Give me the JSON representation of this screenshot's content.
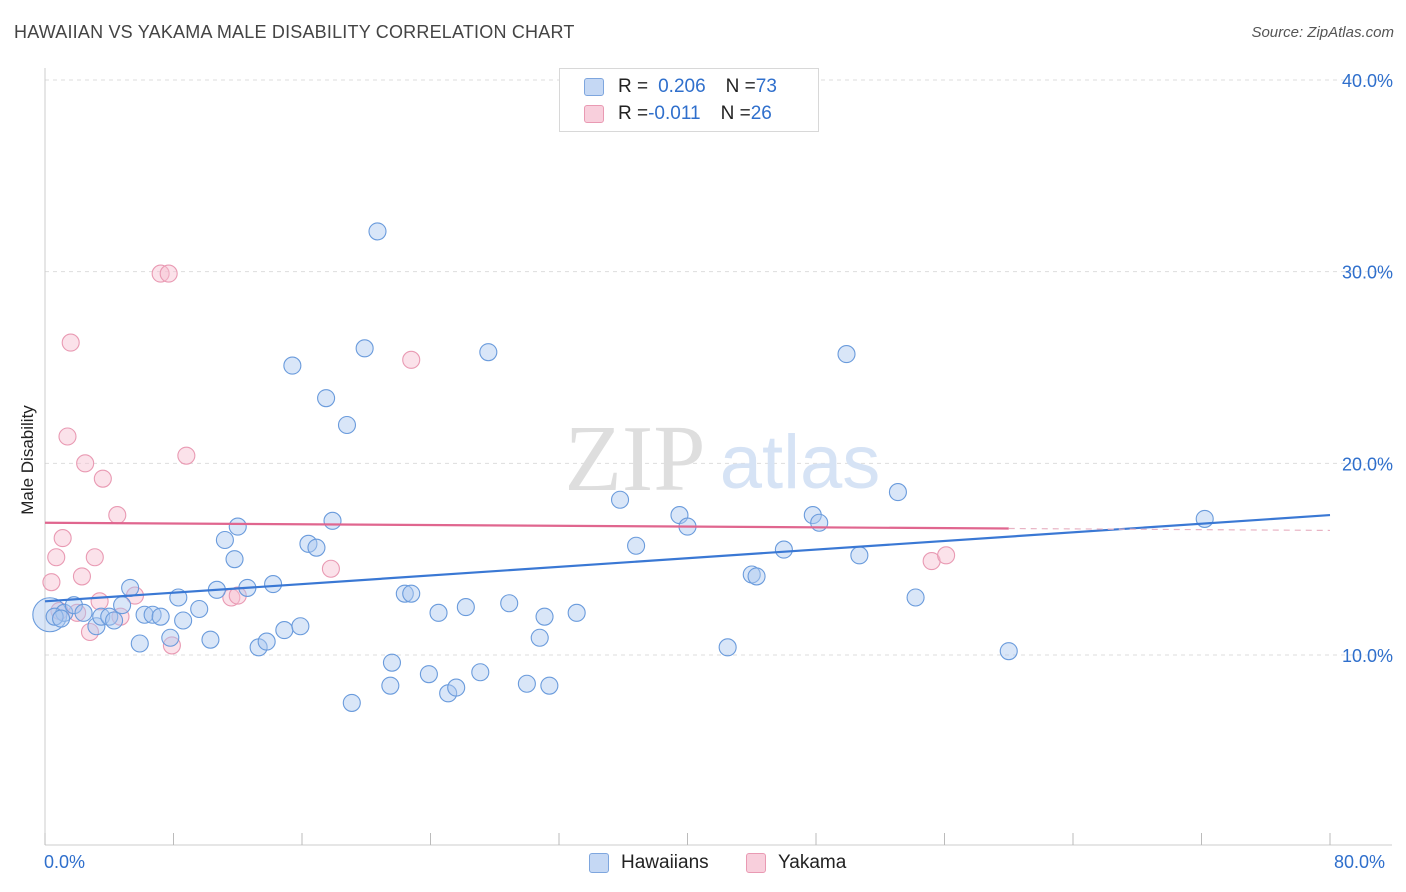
{
  "header": {
    "title": "HAWAIIAN VS YAKAMA MALE DISABILITY CORRELATION CHART",
    "source": "Source: ZipAtlas.com"
  },
  "watermark": {
    "zip": "ZIP",
    "atlas": "atlas"
  },
  "legend_top": {
    "rows": [
      {
        "r_label": "R = ",
        "r_value": "0.206",
        "n_label": "N = ",
        "n_value": "73",
        "color": "#7ea6de"
      },
      {
        "r_label": "R = ",
        "r_value": "-0.011",
        "n_label": "N = ",
        "n_value": "26",
        "color": "#e99ab3"
      }
    ]
  },
  "legend_bottom": {
    "items": [
      "Hawaiians",
      "Yakama"
    ]
  },
  "chart_data": {
    "type": "scatter",
    "title": "HAWAIIAN VS YAKAMA MALE DISABILITY CORRELATION CHART",
    "xlabel": "",
    "ylabel": "Male Disability",
    "xlim": [
      0,
      80
    ],
    "ylim": [
      0,
      40
    ],
    "x_tick_labels": [
      "0.0%",
      "80.0%"
    ],
    "y_tick_labels": [
      "10.0%",
      "20.0%",
      "30.0%",
      "40.0%"
    ],
    "y_ticks": [
      10,
      20,
      30,
      40
    ],
    "colors": {
      "Hawaiians": "#3a78d4",
      "Yakama": "#e0668f"
    },
    "series": [
      {
        "name": "Hawaiians",
        "trend": {
          "x0": 0,
          "y0": 12.8,
          "x1": 80,
          "y1": 17.3
        },
        "points": [
          [
            0.3,
            12.1
          ],
          [
            1.2,
            12.2
          ],
          [
            1.8,
            12.6
          ],
          [
            2.4,
            12.2
          ],
          [
            3.2,
            11.5
          ],
          [
            3.5,
            12.0
          ],
          [
            4.0,
            12.0
          ],
          [
            4.3,
            11.8
          ],
          [
            4.8,
            12.6
          ],
          [
            5.3,
            13.5
          ],
          [
            5.9,
            10.6
          ],
          [
            6.2,
            12.1
          ],
          [
            6.7,
            12.1
          ],
          [
            7.2,
            12.0
          ],
          [
            7.8,
            10.9
          ],
          [
            8.3,
            13.0
          ],
          [
            8.6,
            11.8
          ],
          [
            9.6,
            12.4
          ],
          [
            10.3,
            10.8
          ],
          [
            10.7,
            13.4
          ],
          [
            11.2,
            16.0
          ],
          [
            11.8,
            15.0
          ],
          [
            12.0,
            16.7
          ],
          [
            12.6,
            13.5
          ],
          [
            13.3,
            10.4
          ],
          [
            13.8,
            10.7
          ],
          [
            14.2,
            13.7
          ],
          [
            14.9,
            11.3
          ],
          [
            15.4,
            25.1
          ],
          [
            15.9,
            11.5
          ],
          [
            16.4,
            15.8
          ],
          [
            16.9,
            15.6
          ],
          [
            17.5,
            23.4
          ],
          [
            17.9,
            17.0
          ],
          [
            18.8,
            22.0
          ],
          [
            19.1,
            7.5
          ],
          [
            19.9,
            26.0
          ],
          [
            20.7,
            32.1
          ],
          [
            21.5,
            8.4
          ],
          [
            21.6,
            9.6
          ],
          [
            22.4,
            13.2
          ],
          [
            22.8,
            13.2
          ],
          [
            23.9,
            9.0
          ],
          [
            24.5,
            12.2
          ],
          [
            25.1,
            8.0
          ],
          [
            25.6,
            8.3
          ],
          [
            26.2,
            12.5
          ],
          [
            27.1,
            9.1
          ],
          [
            27.6,
            25.8
          ],
          [
            28.9,
            12.7
          ],
          [
            30.0,
            8.5
          ],
          [
            30.8,
            10.9
          ],
          [
            31.1,
            12.0
          ],
          [
            31.4,
            8.4
          ],
          [
            33.1,
            12.2
          ],
          [
            35.8,
            18.1
          ],
          [
            36.8,
            15.7
          ],
          [
            39.5,
            17.3
          ],
          [
            40.0,
            16.7
          ],
          [
            42.5,
            10.4
          ],
          [
            44.0,
            14.2
          ],
          [
            44.3,
            14.1
          ],
          [
            46.0,
            15.5
          ],
          [
            47.8,
            17.3
          ],
          [
            48.2,
            16.9
          ],
          [
            49.9,
            25.7
          ],
          [
            50.7,
            15.2
          ],
          [
            53.1,
            18.5
          ],
          [
            54.2,
            13.0
          ],
          [
            60.0,
            10.2
          ],
          [
            72.2,
            17.1
          ],
          [
            0.6,
            12.0
          ],
          [
            1.0,
            11.9
          ]
        ]
      },
      {
        "name": "Yakama",
        "trend": {
          "x0": 0,
          "y0": 16.9,
          "x1": 60,
          "y1": 16.6,
          "dashed_to_x": 80
        },
        "points": [
          [
            0.4,
            13.8
          ],
          [
            0.7,
            15.1
          ],
          [
            1.1,
            16.1
          ],
          [
            1.4,
            21.4
          ],
          [
            1.6,
            26.3
          ],
          [
            2.0,
            12.2
          ],
          [
            2.3,
            14.1
          ],
          [
            2.5,
            20.0
          ],
          [
            2.8,
            11.2
          ],
          [
            3.1,
            15.1
          ],
          [
            3.4,
            12.8
          ],
          [
            3.6,
            19.2
          ],
          [
            4.5,
            17.3
          ],
          [
            4.7,
            12.0
          ],
          [
            5.6,
            13.1
          ],
          [
            7.2,
            29.9
          ],
          [
            7.7,
            29.9
          ],
          [
            7.9,
            10.5
          ],
          [
            8.8,
            20.4
          ],
          [
            11.6,
            13.0
          ],
          [
            12.0,
            13.1
          ],
          [
            17.8,
            14.5
          ],
          [
            22.8,
            25.4
          ],
          [
            55.2,
            14.9
          ],
          [
            56.1,
            15.2
          ],
          [
            0.9,
            12.3
          ]
        ]
      }
    ]
  }
}
